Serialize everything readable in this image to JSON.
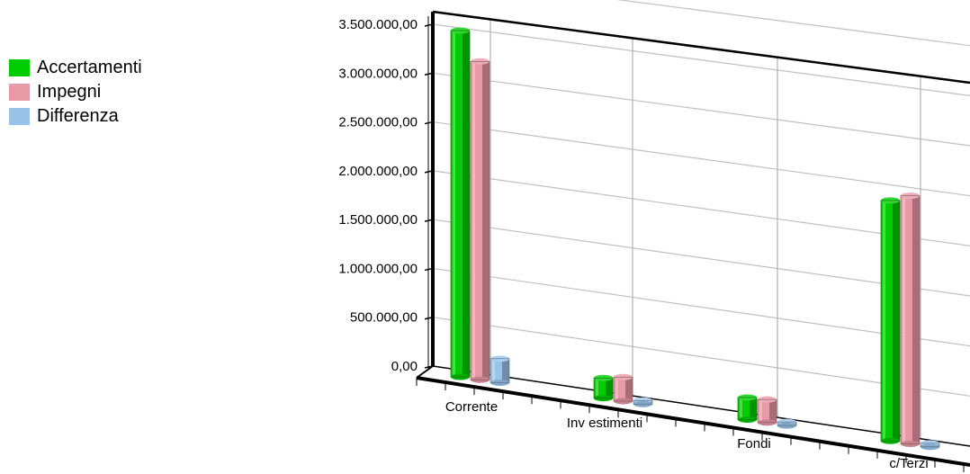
{
  "chart_data": {
    "type": "bar",
    "title": "",
    "xlabel": "",
    "ylabel": "",
    "categories": [
      "Corrente",
      "Inv estimenti",
      "Fondi",
      "c/Terzi"
    ],
    "series": [
      {
        "name": "Accertamenti",
        "color": "#00cc00",
        "values": [
          3600000,
          210000,
          230000,
          2500000
        ]
      },
      {
        "name": "Impegni",
        "color": "#e899a6",
        "values": [
          3310000,
          250000,
          240000,
          2580000
        ]
      },
      {
        "name": "Differenza",
        "color": "#99c4ea",
        "values": [
          250000,
          0,
          0,
          0
        ]
      }
    ],
    "yticks": [
      "0,00",
      "500.000,00",
      "1.000.000,00",
      "1.500.000,00",
      "2.000.000,00",
      "2.500.000,00",
      "3.000.000,00",
      "3.500.000,00"
    ],
    "ylim": [
      0,
      3500000
    ],
    "grid": true,
    "legend_position": "left"
  }
}
